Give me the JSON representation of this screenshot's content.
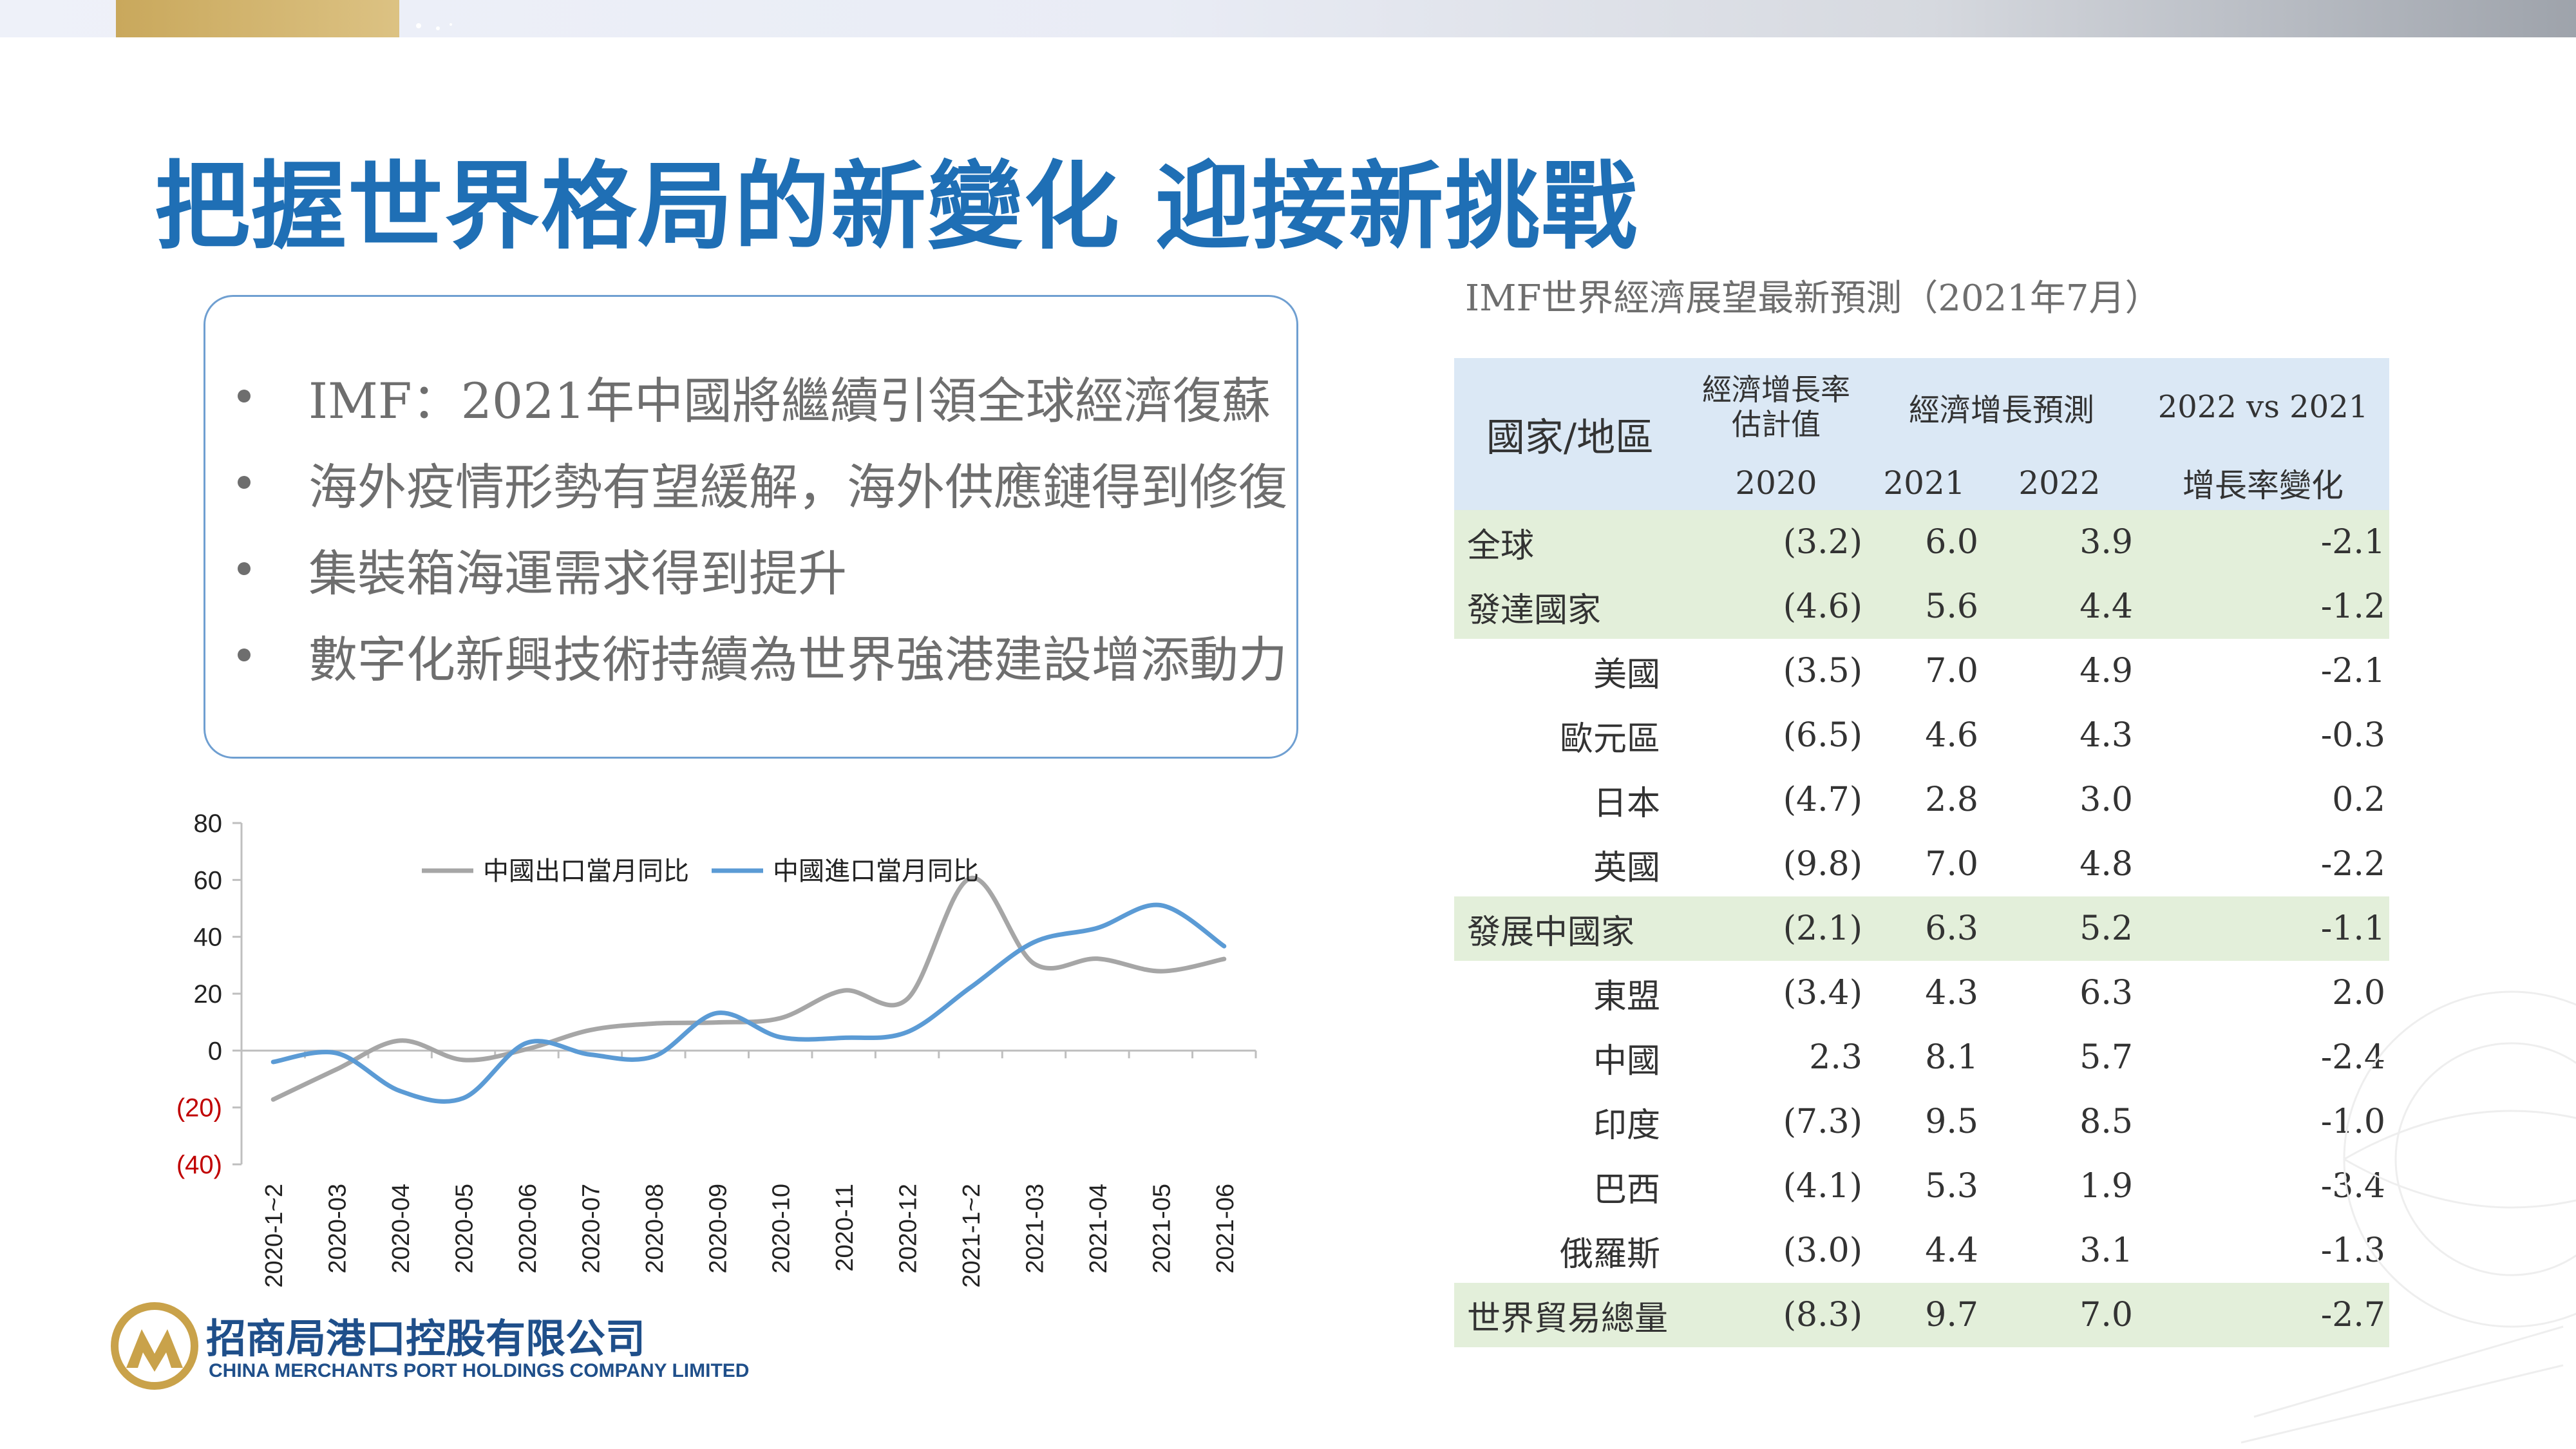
{
  "title": "把握世界格局的新變化  迎接新挑戰",
  "bullets": [
    "IMF：2021年中國將繼續引領全球經濟復蘇",
    "海外疫情形勢有望緩解，海外供應鏈得到修復",
    "集裝箱海運需求得到提升",
    "數字化新興技術持續為世界強港建設增添動力"
  ],
  "chart_data": {
    "type": "line",
    "categories": [
      "2020-1~2",
      "2020-03",
      "2020-04",
      "2020-05",
      "2020-06",
      "2020-07",
      "2020-08",
      "2020-09",
      "2020-10",
      "2020-11",
      "2020-12",
      "2021-1~2",
      "2021-03",
      "2021-04",
      "2021-05",
      "2021-06"
    ],
    "series": [
      {
        "name": "中國出口當月同比",
        "color": "#a6a6a6",
        "values": [
          -17.2,
          -6.6,
          3.5,
          -3.3,
          0.5,
          7.2,
          9.5,
          9.9,
          11.4,
          21.1,
          18.1,
          60.6,
          30.6,
          32.3,
          27.9,
          32.2
        ]
      },
      {
        "name": "中國進口當月同比",
        "color": "#5b9bd5",
        "values": [
          -4.0,
          -0.9,
          -14.2,
          -16.7,
          2.7,
          -1.4,
          -2.1,
          13.2,
          4.7,
          4.5,
          6.5,
          22.2,
          38.1,
          43.1,
          51.1,
          36.7
        ]
      }
    ],
    "y_ticks": [
      "80",
      "60",
      "40",
      "20",
      "0",
      "(20)",
      "(40)"
    ],
    "ylim": [
      -40,
      80
    ],
    "negative_tick_color": "#c00000",
    "legend": "top"
  },
  "logo": {
    "name_cn": "招商局港口控股有限公司",
    "name_en": "CHINA MERCHANTS PORT HOLDINGS COMPANY LIMITED"
  },
  "table": {
    "caption": "IMF世界經濟展望最新預測（2021年7月）",
    "header": {
      "country": "國家/地區",
      "estimate_line1": "經濟增長率",
      "estimate_line2": "估計值",
      "forecast": "經濟增長預測",
      "change_top": "2022 vs 2021",
      "year_2020": "2020",
      "year_2021": "2021",
      "year_2022": "2022",
      "change_bottom": "增長率變化"
    },
    "rows": [
      {
        "name": "全球",
        "group": true,
        "v2020": "(3.2)",
        "v2021": "6.0",
        "v2022": "3.9",
        "change": "-2.1"
      },
      {
        "name": "發達國家",
        "group": true,
        "v2020": "(4.6)",
        "v2021": "5.6",
        "v2022": "4.4",
        "change": "-1.2"
      },
      {
        "name": "美國",
        "group": false,
        "v2020": "(3.5)",
        "v2021": "7.0",
        "v2022": "4.9",
        "change": "-2.1"
      },
      {
        "name": "歐元區",
        "group": false,
        "v2020": "(6.5)",
        "v2021": "4.6",
        "v2022": "4.3",
        "change": "-0.3"
      },
      {
        "name": "日本",
        "group": false,
        "v2020": "(4.7)",
        "v2021": "2.8",
        "v2022": "3.0",
        "change": "0.2"
      },
      {
        "name": "英國",
        "group": false,
        "v2020": "(9.8)",
        "v2021": "7.0",
        "v2022": "4.8",
        "change": "-2.2"
      },
      {
        "name": "發展中國家",
        "group": true,
        "v2020": "(2.1)",
        "v2021": "6.3",
        "v2022": "5.2",
        "change": "-1.1"
      },
      {
        "name": "東盟",
        "group": false,
        "v2020": "(3.4)",
        "v2021": "4.3",
        "v2022": "6.3",
        "change": "2.0"
      },
      {
        "name": "中國",
        "group": false,
        "v2020": "2.3",
        "v2021": "8.1",
        "v2022": "5.7",
        "change": "-2.4"
      },
      {
        "name": "印度",
        "group": false,
        "v2020": "(7.3)",
        "v2021": "9.5",
        "v2022": "8.5",
        "change": "-1.0"
      },
      {
        "name": "巴西",
        "group": false,
        "v2020": "(4.1)",
        "v2021": "5.3",
        "v2022": "1.9",
        "change": "-3.4"
      },
      {
        "name": "俄羅斯",
        "group": false,
        "v2020": "(3.0)",
        "v2021": "4.4",
        "v2022": "3.1",
        "change": "-1.3"
      },
      {
        "name": "世界貿易總量",
        "group": true,
        "v2020": "(8.3)",
        "v2021": "9.7",
        "v2022": "7.0",
        "change": "-2.7"
      }
    ]
  },
  "colors": {
    "title": "#1f6fb5",
    "group_row_bg": "#e3efda",
    "header_bg": "#dbe8f5",
    "bullet_text": "#6e6e6e",
    "box_border": "#6f9fd1"
  }
}
